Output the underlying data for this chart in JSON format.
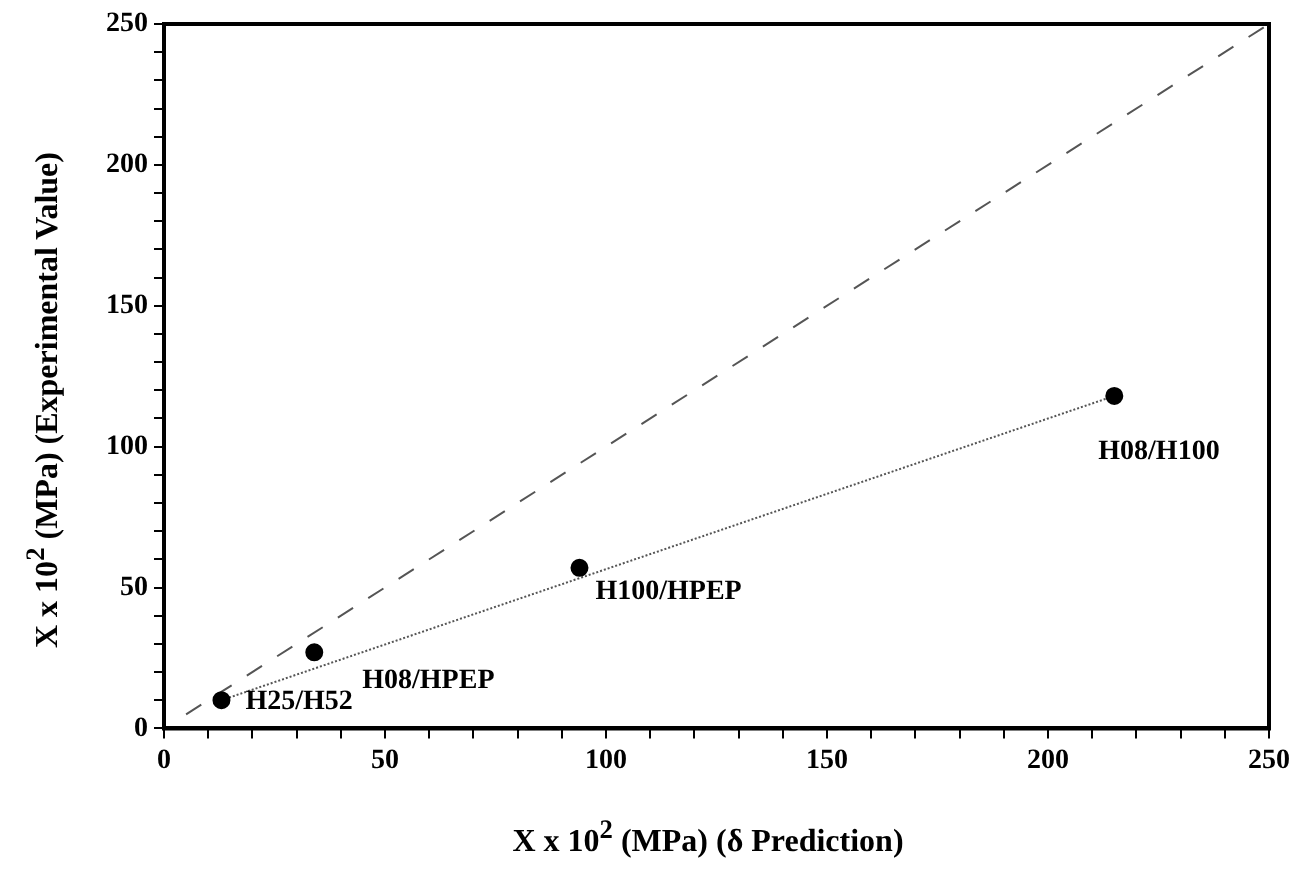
{
  "chart_data": {
    "type": "scatter",
    "xlabel": "X x 10$^{2}$ (MPa) (δ Prediction)",
    "ylabel": "X x 10$^{2}$ (MPa) (Experimental Value)",
    "series": [
      {
        "color": "#000000",
        "x": [
          13,
          34,
          94,
          215
        ],
        "values": [
          10,
          27,
          57,
          118
        ],
        "marker": "circle"
      },
      {
        "type": "line",
        "color": "#555555",
        "x": [
          13,
          215
        ],
        "values": [
          10,
          118
        ],
        "line_style": "dotted",
        "marker": "none"
      },
      {
        "type": "line",
        "color": "#555555",
        "x": [
          5,
          250
        ],
        "values": [
          5,
          250
        ],
        "line_style": "dashed",
        "marker": "none"
      }
    ],
    "annotations": [
      {
        "text": "H25/H52",
        "x": 13,
        "y": 10
      },
      {
        "text": "H08/HPEP",
        "x": 34,
        "y": 27
      },
      {
        "text": "H100/HPEP",
        "x": 94,
        "y": 57
      },
      {
        "text": "H08/H100",
        "x": 215,
        "y": 118
      }
    ],
    "xlim": [
      0,
      250
    ],
    "ylim": [
      0,
      250
    ],
    "xticks": [
      0,
      {
        "value": 10,
        "label": null
      },
      {
        "value": 20,
        "label": null
      },
      {
        "value": 30,
        "label": null
      },
      {
        "value": 40,
        "label": null
      },
      50,
      {
        "value": 60,
        "label": null
      },
      {
        "value": 70,
        "label": null
      },
      {
        "value": 80,
        "label": null
      },
      {
        "value": 90,
        "label": null
      },
      100,
      {
        "value": 110,
        "label": null
      },
      {
        "value": 120,
        "label": null
      },
      {
        "value": 130,
        "label": null
      },
      {
        "value": 140,
        "label": null
      },
      150,
      {
        "value": 160,
        "label": null
      },
      {
        "value": 170,
        "label": null
      },
      {
        "value": 180,
        "label": null
      },
      {
        "value": 190,
        "label": null
      },
      200,
      {
        "value": 210,
        "label": null
      },
      {
        "value": 220,
        "label": null
      },
      {
        "value": 230,
        "label": null
      },
      {
        "value": 240,
        "label": null
      },
      250
    ],
    "yticks": [
      0,
      {
        "value": 10,
        "label": null
      },
      {
        "value": 20,
        "label": null
      },
      {
        "value": 30,
        "label": null
      },
      {
        "value": 40,
        "label": null
      },
      50,
      {
        "value": 60,
        "label": null
      },
      {
        "value": 70,
        "label": null
      },
      {
        "value": 80,
        "label": null
      },
      {
        "value": 90,
        "label": null
      },
      100,
      {
        "value": 110,
        "label": null
      },
      {
        "value": 120,
        "label": null
      },
      {
        "value": 130,
        "label": null
      },
      {
        "value": 140,
        "label": null
      },
      150,
      {
        "value": 160,
        "label": null
      },
      {
        "value": 170,
        "label": null
      },
      {
        "value": 180,
        "label": null
      },
      {
        "value": 190,
        "label": null
      },
      200,
      {
        "value": 210,
        "label": null
      },
      {
        "value": 220,
        "label": null
      },
      {
        "value": 230,
        "label": null
      },
      {
        "value": 240,
        "label": null
      },
      250
    ],
    "grid": false,
    "legend": false
  }
}
